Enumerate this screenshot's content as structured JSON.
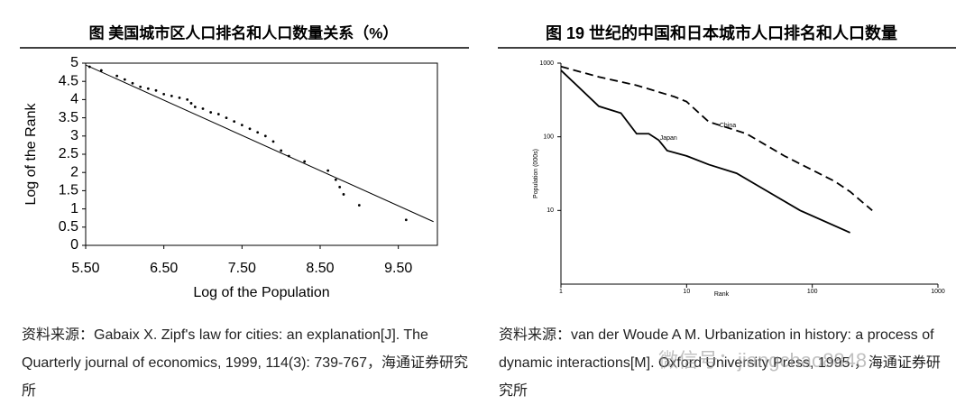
{
  "chart_data": [
    {
      "type": "scatter",
      "title": "图   美国城市区人口排名和人口数量关系（%）",
      "x_label": "Log of the Population",
      "y_label": "Log of the Rank",
      "xlim": [
        5.5,
        10.0
      ],
      "ylim": [
        0,
        5
      ],
      "xticks": [
        {
          "value": 5.5,
          "label": "5.50"
        },
        {
          "value": 6.5,
          "label": "6.50"
        },
        {
          "value": 7.5,
          "label": "7.50"
        },
        {
          "value": 8.5,
          "label": "8.50"
        },
        {
          "value": 9.5,
          "label": "9.50"
        }
      ],
      "yticks": [
        0,
        0.5,
        1,
        1.5,
        2,
        2.5,
        3,
        3.5,
        4,
        4.5,
        5
      ],
      "series": [
        {
          "type": "scatter",
          "color": "#000000",
          "x": [
            5.55,
            5.7,
            5.9,
            6.0,
            6.1,
            6.2,
            6.3,
            6.4,
            6.5,
            6.6,
            6.7,
            6.8,
            6.85,
            6.9,
            7.0,
            7.1,
            7.2,
            7.3,
            7.4,
            7.5,
            7.6,
            7.7,
            7.8,
            7.9,
            8.0,
            8.1,
            8.3,
            8.6,
            8.7,
            8.75,
            8.8,
            9.0,
            9.6
          ],
          "y": [
            4.9,
            4.8,
            4.65,
            4.55,
            4.45,
            4.35,
            4.3,
            4.25,
            4.15,
            4.1,
            4.05,
            4.0,
            3.9,
            3.8,
            3.75,
            3.65,
            3.6,
            3.5,
            3.4,
            3.3,
            3.2,
            3.1,
            3.0,
            2.85,
            2.6,
            2.45,
            2.3,
            2.05,
            1.8,
            1.6,
            1.4,
            1.1,
            0.7
          ]
        },
        {
          "type": "line",
          "color": "#000000",
          "x": [
            5.5,
            9.95
          ],
          "y": [
            4.95,
            0.65
          ]
        }
      ],
      "source": "资料来源：Gabaix X. Zipf's law for cities: an explanation[J]. The Quarterly journal of economics, 1999, 114(3): 739-767，海通证券研究所"
    },
    {
      "type": "line",
      "title": "图   19 世纪的中国和日本城市人口排名和人口数量",
      "x_label": "Rank",
      "y_label": "Population (000s)",
      "xscale": "log",
      "yscale": "log",
      "xlim": [
        1,
        1000
      ],
      "ylim": [
        1,
        1000
      ],
      "xticks": [
        1,
        10,
        100,
        1000
      ],
      "yticks": [
        10,
        100,
        1000
      ],
      "series": [
        {
          "name": "China",
          "color": "#000000",
          "dash": true,
          "x": [
            1,
            2,
            4,
            8,
            10,
            15,
            30,
            60,
            150,
            200,
            300
          ],
          "y": [
            900,
            650,
            500,
            350,
            300,
            160,
            110,
            55,
            25,
            18,
            10
          ]
        },
        {
          "name": "Japan",
          "color": "#000000",
          "dash": false,
          "x": [
            1,
            2,
            3,
            4,
            5,
            6,
            7,
            10,
            15,
            25,
            40,
            80,
            200
          ],
          "y": [
            800,
            260,
            210,
            110,
            110,
            90,
            65,
            55,
            42,
            32,
            20,
            10,
            5
          ]
        }
      ],
      "source": "资料来源：van der Woude A M. Urbanization in history: a process of dynamic interactions[M]. Oxford University Press, 1995.，海通证券研究所"
    }
  ],
  "watermark": "微信号：jiangchao8848"
}
